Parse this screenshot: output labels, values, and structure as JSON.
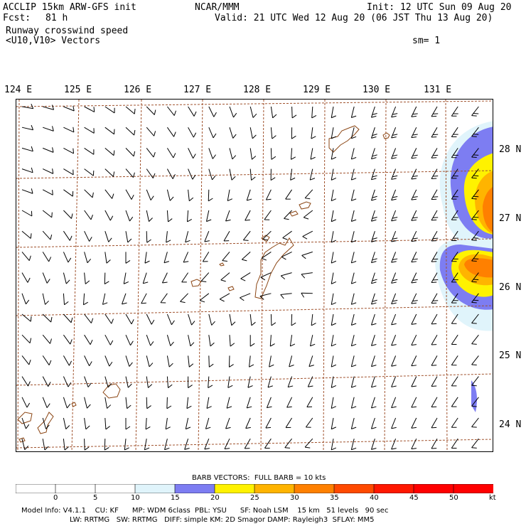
{
  "header": {
    "model": "ACCLIP 15km ARW-GFS init",
    "fcst_label": "Fcst:",
    "fcst_value": "81 h",
    "field": "Runway crosswind speed",
    "vectors": "<U10,V10> Vectors",
    "org": "NCAR/MMM",
    "init": "Init: 12 UTC Sun 09 Aug 20",
    "valid": "Valid: 21 UTC Wed 12 Aug 20 (06 JST Thu 13 Aug 20)",
    "smooth": "sm= 1"
  },
  "lon_labels": [
    "124 E",
    "125 E",
    "126 E",
    "127 E",
    "128 E",
    "129 E",
    "130 E",
    "131 E"
  ],
  "lat_labels": [
    "28 N",
    "27 N",
    "26 N",
    "25 N",
    "24 N"
  ],
  "barb_note": "BARB VECTORS:  FULL BARB = 10 kts",
  "colorbar": {
    "ticks": [
      "0",
      "5",
      "10",
      "15",
      "20",
      "25",
      "30",
      "35",
      "40",
      "45",
      "50"
    ],
    "unit": "kt",
    "colors": [
      "#ffffff",
      "#ffffff",
      "#ffffff",
      "#e0f4fb",
      "#7d7df2",
      "#fff200",
      "#ffb400",
      "#ff8000",
      "#ff4a00",
      "#ff1800",
      "#ff0000",
      "#ff0000"
    ]
  },
  "footer": {
    "line1": "Model Info: V4.1.1    CU: KF      MP: WDM 6class  PBL: YSU      SF: Noah LSM    15 km   51 levels   90 sec",
    "line2": "LW: RRTMG   SW: RRTMG   DIFF: simple KM: 2D Smagor DAMP: Rayleigh3  SFLAY: MM5"
  },
  "colors": {
    "grid": "#a0522d",
    "coast": "#8b4513",
    "barb": "#000000"
  }
}
